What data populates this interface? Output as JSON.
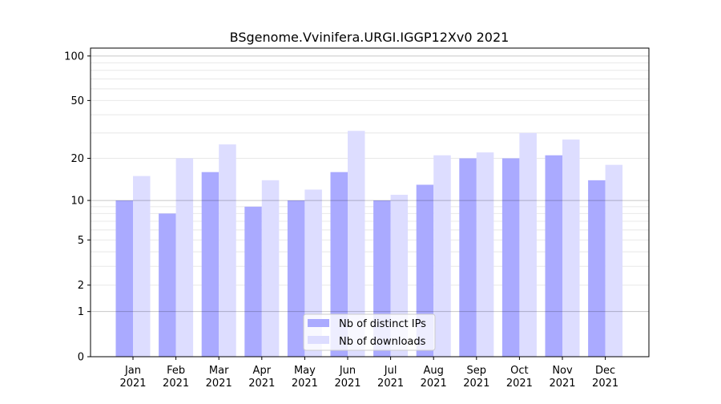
{
  "chart_data": {
    "type": "bar",
    "title": "BSgenome.Vvinifera.URGI.IGGP12Xv0 2021",
    "xlabel": "",
    "ylabel": "",
    "yscale": "symlog (log10(1+y))",
    "ylim": [
      0,
      113
    ],
    "yticks": [
      0,
      1,
      2,
      5,
      10,
      20,
      50,
      100
    ],
    "ytick_labels": [
      "0",
      "1",
      "2",
      "5",
      "10",
      "20",
      "50",
      "100"
    ],
    "categories": [
      "Jan",
      "Feb",
      "Mar",
      "Apr",
      "May",
      "Jun",
      "Jul",
      "Aug",
      "Sep",
      "Oct",
      "Nov",
      "Dec"
    ],
    "category_sublabel": "2021",
    "series": [
      {
        "name": "Nb of distinct IPs",
        "color": "#aaaaff",
        "values": [
          10,
          8,
          16,
          9,
          10,
          16,
          10,
          13,
          20,
          20,
          21,
          14
        ]
      },
      {
        "name": "Nb of downloads",
        "color": "#ddddff",
        "values": [
          15,
          20,
          25,
          14,
          12,
          31,
          11,
          21,
          22,
          30,
          27,
          18
        ]
      }
    ],
    "grid": true,
    "legend_position": "lower-center"
  }
}
